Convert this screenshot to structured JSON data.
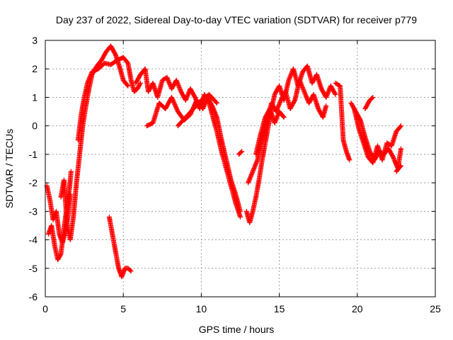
{
  "chart_data": {
    "type": "scatter",
    "title": "Day 237 of 2022, Sidereal Day-to-day VTEC variation (SDTVAR) for receiver p779",
    "xlabel": "GPS time / hours",
    "ylabel": "SDTVAR / TECUs",
    "xlim": [
      0,
      25
    ],
    "ylim": [
      -6,
      3
    ],
    "xticks": [
      0,
      5,
      10,
      15,
      20,
      25
    ],
    "yticks": [
      -6,
      -5,
      -4,
      -3,
      -2,
      -1,
      0,
      1,
      2,
      3
    ],
    "grid": true,
    "marker": "+",
    "color": "#ff0000",
    "series": [
      {
        "name": "SDTVAR",
        "tracks": [
          [
            [
              0.1,
              -2.1
            ],
            [
              0.3,
              -2.6
            ],
            [
              0.5,
              -3.3
            ],
            [
              0.7,
              -3.0
            ],
            [
              0.9,
              -3.8
            ],
            [
              1.1,
              -4.1
            ],
            [
              1.3,
              -3.7
            ],
            [
              1.5,
              -3.0
            ],
            [
              1.6,
              -2.4
            ]
          ],
          [
            [
              0.2,
              -3.8
            ],
            [
              0.4,
              -3.5
            ],
            [
              0.6,
              -4.2
            ],
            [
              0.8,
              -4.7
            ],
            [
              1.0,
              -4.5
            ],
            [
              1.2,
              -3.6
            ],
            [
              1.4,
              -2.8
            ],
            [
              1.55,
              -2.2
            ],
            [
              1.65,
              -1.6
            ]
          ],
          [
            [
              1.0,
              -2.5
            ],
            [
              1.2,
              -1.9
            ],
            [
              1.4,
              -3.5
            ],
            [
              1.6,
              -4.0
            ],
            [
              1.8,
              -3.2
            ],
            [
              2.0,
              -2.0
            ],
            [
              2.2,
              -1.0
            ],
            [
              2.4,
              0.0
            ],
            [
              2.6,
              0.7
            ],
            [
              2.8,
              1.3
            ],
            [
              3.0,
              1.8
            ],
            [
              3.3,
              2.1
            ],
            [
              3.6,
              2.3
            ],
            [
              3.9,
              2.6
            ],
            [
              4.2,
              2.8
            ],
            [
              4.5,
              2.5
            ],
            [
              4.8,
              2.0
            ],
            [
              5.0,
              1.6
            ],
            [
              5.3,
              1.4
            ]
          ],
          [
            [
              2.1,
              -0.5
            ],
            [
              2.3,
              0.4
            ],
            [
              2.5,
              1.0
            ],
            [
              2.7,
              1.5
            ],
            [
              3.0,
              1.9
            ],
            [
              3.4,
              2.0
            ],
            [
              3.8,
              2.2
            ],
            [
              4.2,
              2.15
            ],
            [
              4.6,
              2.3
            ],
            [
              5.0,
              2.4
            ],
            [
              5.3,
              2.2
            ],
            [
              5.5,
              1.6
            ],
            [
              5.7,
              1.2
            ],
            [
              5.9,
              1.3
            ],
            [
              6.1,
              1.5
            ]
          ],
          [
            [
              4.1,
              -3.2
            ],
            [
              4.3,
              -3.8
            ],
            [
              4.5,
              -4.4
            ],
            [
              4.7,
              -5.0
            ],
            [
              4.9,
              -5.3
            ],
            [
              5.1,
              -5.0
            ],
            [
              5.3,
              -5.0
            ],
            [
              5.5,
              -5.1
            ]
          ],
          [
            [
              5.8,
              1.5
            ],
            [
              6.1,
              1.8
            ],
            [
              6.4,
              2.0
            ],
            [
              6.6,
              1.2
            ],
            [
              6.9,
              1.5
            ],
            [
              7.2,
              1.0
            ],
            [
              7.5,
              1.6
            ],
            [
              7.8,
              1.7
            ],
            [
              8.1,
              1.3
            ],
            [
              8.4,
              1.6
            ],
            [
              8.7,
              1.2
            ],
            [
              9.0,
              0.9
            ],
            [
              9.3,
              1.3
            ],
            [
              9.6,
              1.0
            ],
            [
              9.9,
              0.6
            ],
            [
              10.2,
              1.1
            ],
            [
              10.5,
              0.8
            ],
            [
              10.7,
              0.4
            ],
            [
              11.0,
              -0.2
            ],
            [
              11.3,
              -0.9
            ],
            [
              11.6,
              -1.5
            ],
            [
              11.9,
              -2.1
            ],
            [
              12.2,
              -2.7
            ],
            [
              12.5,
              -3.2
            ]
          ],
          [
            [
              6.5,
              0.0
            ],
            [
              6.9,
              0.1
            ],
            [
              7.3,
              0.8
            ],
            [
              7.7,
              0.6
            ],
            [
              8.1,
              1.0
            ],
            [
              8.5,
              0.5
            ],
            [
              8.9,
              0.2
            ],
            [
              9.3,
              0.4
            ],
            [
              9.7,
              0.9
            ],
            [
              10.1,
              0.6
            ],
            [
              10.4,
              1.0
            ],
            [
              10.7,
              0.7
            ],
            [
              11.0,
              0.3
            ],
            [
              11.3,
              -0.5
            ],
            [
              11.6,
              -1.2
            ],
            [
              11.9,
              -1.9
            ],
            [
              12.2,
              -2.4
            ],
            [
              12.5,
              -3.0
            ]
          ],
          [
            [
              8.5,
              0.0
            ],
            [
              9.0,
              0.3
            ],
            [
              9.5,
              0.6
            ],
            [
              10.0,
              0.9
            ],
            [
              10.5,
              1.1
            ],
            [
              11.0,
              0.8
            ]
          ],
          [
            [
              12.4,
              -1.0
            ],
            [
              12.6,
              -0.9
            ]
          ],
          [
            [
              12.9,
              -3.0
            ],
            [
              13.1,
              -3.4
            ],
            [
              13.3,
              -3.0
            ],
            [
              13.5,
              -2.5
            ],
            [
              13.7,
              -1.9
            ],
            [
              13.9,
              -1.2
            ],
            [
              14.1,
              -0.6
            ],
            [
              14.3,
              0.0
            ],
            [
              14.5,
              0.6
            ],
            [
              14.7,
              1.1
            ],
            [
              15.0,
              1.4
            ],
            [
              15.3,
              0.9
            ],
            [
              15.6,
              1.6
            ],
            [
              15.9,
              2.0
            ],
            [
              16.2,
              1.4
            ],
            [
              16.5,
              1.9
            ],
            [
              16.8,
              2.1
            ],
            [
              17.1,
              1.5
            ],
            [
              17.4,
              1.8
            ],
            [
              17.7,
              1.3
            ],
            [
              18.0,
              1.0
            ],
            [
              18.3,
              1.4
            ],
            [
              18.6,
              1.1
            ]
          ],
          [
            [
              13.0,
              -2.0
            ],
            [
              13.3,
              -1.6
            ],
            [
              13.6,
              -1.2
            ],
            [
              13.9,
              -0.5
            ],
            [
              14.2,
              0.2
            ],
            [
              14.5,
              0.8
            ],
            [
              14.8,
              0.5
            ],
            [
              15.1,
              0.9
            ],
            [
              15.4,
              1.2
            ],
            [
              15.7,
              0.6
            ],
            [
              16.0,
              0.9
            ],
            [
              16.3,
              1.6
            ],
            [
              16.6,
              1.2
            ],
            [
              16.9,
              0.8
            ],
            [
              17.2,
              1.1
            ],
            [
              17.5,
              0.6
            ],
            [
              17.8,
              0.3
            ],
            [
              18.0,
              0.7
            ]
          ],
          [
            [
              13.5,
              -1.0
            ],
            [
              13.8,
              -0.3
            ],
            [
              14.1,
              0.3
            ],
            [
              14.4,
              0.6
            ],
            [
              14.7,
              0.1
            ],
            [
              15.0,
              0.5
            ],
            [
              15.3,
              0.3
            ]
          ],
          [
            [
              18.6,
              1.5
            ],
            [
              18.9,
              1.4
            ],
            [
              19.1,
              -0.5
            ],
            [
              19.3,
              -0.9
            ],
            [
              19.5,
              -1.2
            ]
          ],
          [
            [
              19.6,
              0.8
            ],
            [
              19.9,
              0.5
            ],
            [
              20.2,
              0.2
            ],
            [
              20.5,
              -0.4
            ],
            [
              20.8,
              -0.9
            ],
            [
              21.1,
              -1.2
            ],
            [
              21.4,
              -0.9
            ],
            [
              21.7,
              -1.0
            ],
            [
              22.0,
              -0.8
            ],
            [
              22.3,
              -1.1
            ],
            [
              22.6,
              -1.5
            ],
            [
              22.8,
              -0.8
            ]
          ],
          [
            [
              19.8,
              0.6
            ],
            [
              20.1,
              -0.1
            ],
            [
              20.4,
              -0.6
            ],
            [
              20.7,
              -1.1
            ],
            [
              21.0,
              -1.3
            ],
            [
              21.3,
              -0.7
            ],
            [
              21.6,
              -1.2
            ],
            [
              21.9,
              -0.6
            ],
            [
              22.2,
              -0.7
            ],
            [
              22.5,
              -0.2
            ],
            [
              22.8,
              0.0
            ]
          ],
          [
            [
              20.5,
              0.6
            ],
            [
              20.8,
              0.9
            ],
            [
              21.0,
              1.0
            ]
          ],
          [
            [
              22.5,
              -1.6
            ],
            [
              22.8,
              -1.4
            ]
          ]
        ]
      }
    ]
  }
}
